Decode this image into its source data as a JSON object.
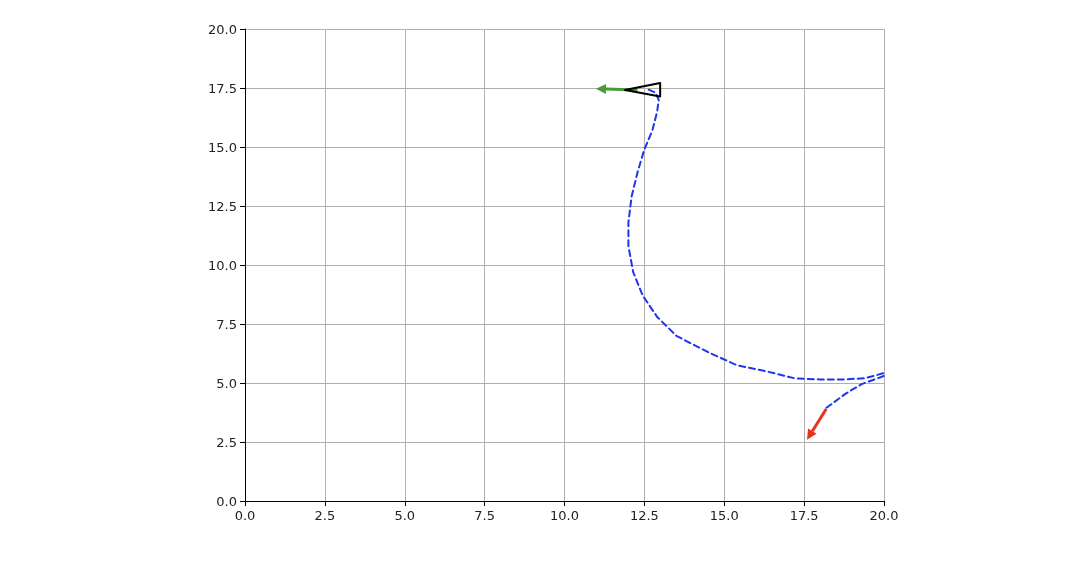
{
  "chart_data": {
    "type": "line",
    "xlim": [
      0,
      20
    ],
    "ylim": [
      0,
      20
    ],
    "xticks": [
      {
        "value": 0,
        "label": "0.0"
      },
      {
        "value": 2.5,
        "label": "2.5"
      },
      {
        "value": 5,
        "label": "5.0"
      },
      {
        "value": 7.5,
        "label": "7.5"
      },
      {
        "value": 10,
        "label": "10.0"
      },
      {
        "value": 12.5,
        "label": "12.5"
      },
      {
        "value": 15,
        "label": "15.0"
      },
      {
        "value": 17.5,
        "label": "17.5"
      },
      {
        "value": 20,
        "label": "20.0"
      }
    ],
    "yticks": [
      {
        "value": 0,
        "label": "0.0"
      },
      {
        "value": 2.5,
        "label": "2.5"
      },
      {
        "value": 5,
        "label": "5.0"
      },
      {
        "value": 7.5,
        "label": "7.5"
      },
      {
        "value": 10,
        "label": "10.0"
      },
      {
        "value": 12.5,
        "label": "12.5"
      },
      {
        "value": 15,
        "label": "15.0"
      },
      {
        "value": 17.5,
        "label": "17.5"
      },
      {
        "value": 20,
        "label": "20.0"
      }
    ],
    "grid": true,
    "marker": "none",
    "series": [
      {
        "color": "#1f35f0",
        "line_style": "dashed",
        "x": [
          18.2,
          18.8,
          19.3,
          20,
          20,
          19.4,
          18.7,
          18,
          17.2,
          16.3,
          15.4,
          14.5,
          13.5,
          12.9,
          12.45,
          12.15,
          12,
          12,
          12.1,
          12.3,
          12.5,
          12.75,
          12.9,
          12.95,
          12.85,
          12.6
        ],
        "values": [
          3.95,
          4.55,
          4.95,
          5.3,
          5.42,
          5.2,
          5.15,
          5.15,
          5.2,
          5.5,
          5.75,
          6.3,
          7.0,
          7.8,
          8.7,
          9.7,
          10.8,
          11.8,
          12.9,
          14.0,
          14.9,
          15.7,
          16.5,
          17.0,
          17.3,
          17.45
        ]
      }
    ]
  }
}
